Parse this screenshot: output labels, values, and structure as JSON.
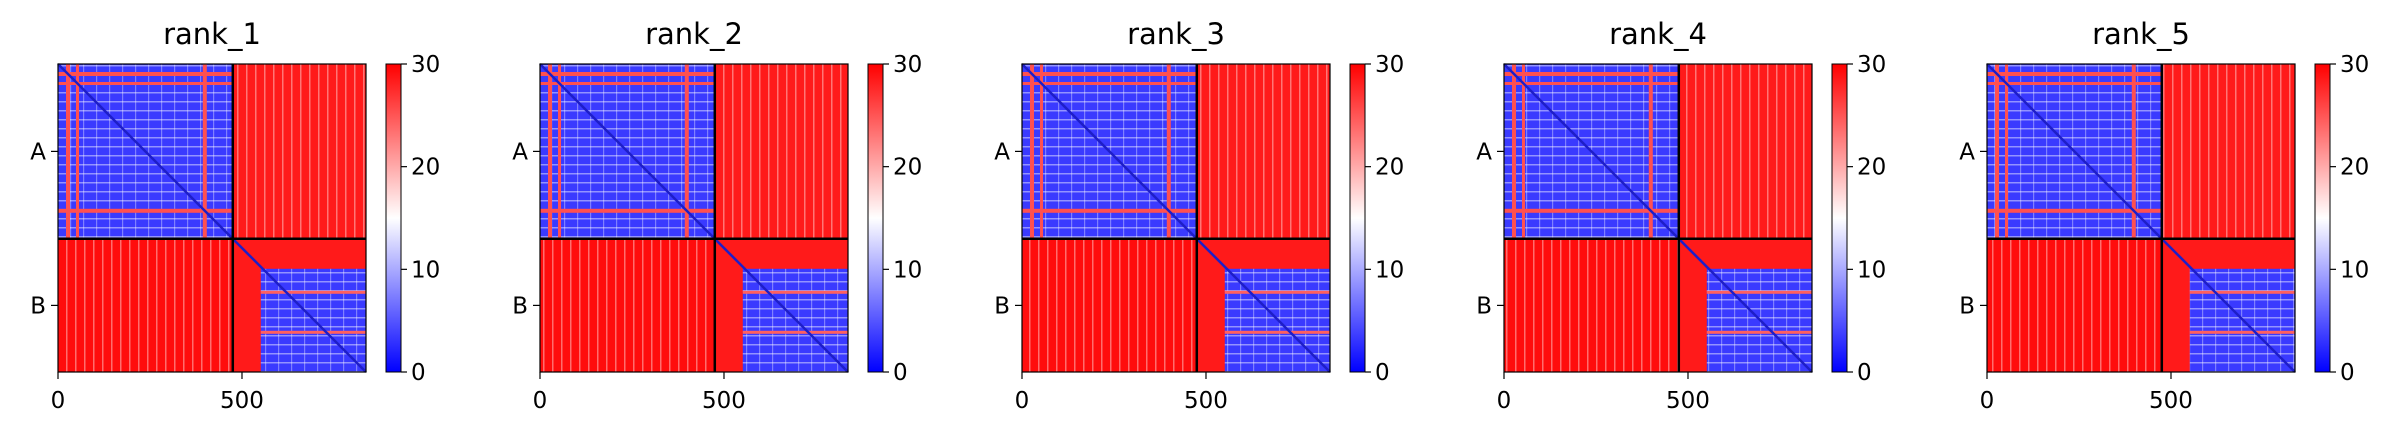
{
  "chart_data": [
    {
      "type": "heatmap",
      "title": "rank_1",
      "x_range": [
        0,
        837
      ],
      "x_ticks": [
        0,
        500
      ],
      "chain_boundary": 475,
      "chains": [
        "A",
        "B"
      ],
      "colorbar": {
        "range": [
          0,
          30
        ],
        "ticks": [
          0,
          10,
          20,
          30
        ],
        "colors": [
          "#0000ff",
          "#ffffff",
          "#ff0000"
        ]
      }
    },
    {
      "type": "heatmap",
      "title": "rank_2",
      "x_range": [
        0,
        837
      ],
      "x_ticks": [
        0,
        500
      ],
      "chain_boundary": 475,
      "chains": [
        "A",
        "B"
      ],
      "colorbar": {
        "range": [
          0,
          30
        ],
        "ticks": [
          0,
          10,
          20,
          30
        ],
        "colors": [
          "#0000ff",
          "#ffffff",
          "#ff0000"
        ]
      }
    },
    {
      "type": "heatmap",
      "title": "rank_3",
      "x_range": [
        0,
        837
      ],
      "x_ticks": [
        0,
        500
      ],
      "chain_boundary": 475,
      "chains": [
        "A",
        "B"
      ],
      "colorbar": {
        "range": [
          0,
          30
        ],
        "ticks": [
          0,
          10,
          20,
          30
        ],
        "colors": [
          "#0000ff",
          "#ffffff",
          "#ff0000"
        ]
      }
    },
    {
      "type": "heatmap",
      "title": "rank_4",
      "x_range": [
        0,
        837
      ],
      "x_ticks": [
        0,
        500
      ],
      "chain_boundary": 475,
      "chains": [
        "A",
        "B"
      ],
      "colorbar": {
        "range": [
          0,
          30
        ],
        "ticks": [
          0,
          10,
          20,
          30
        ],
        "colors": [
          "#0000ff",
          "#ffffff",
          "#ff0000"
        ]
      }
    },
    {
      "type": "heatmap",
      "title": "rank_5",
      "x_range": [
        0,
        837
      ],
      "x_ticks": [
        0,
        500
      ],
      "chain_boundary": 475,
      "chains": [
        "A",
        "B"
      ],
      "colorbar": {
        "range": [
          0,
          30
        ],
        "ticks": [
          0,
          10,
          20,
          30
        ],
        "colors": [
          "#0000ff",
          "#ffffff",
          "#ff0000"
        ]
      }
    }
  ]
}
